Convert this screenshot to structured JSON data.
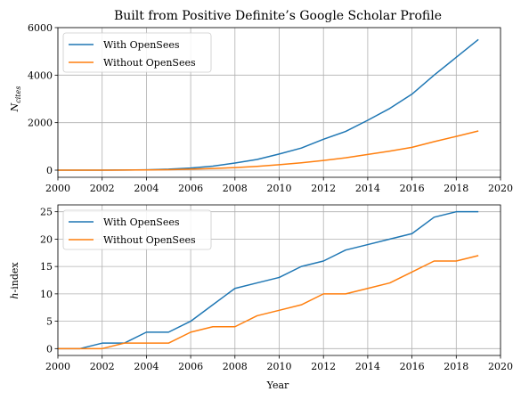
{
  "chart_data": [
    {
      "type": "line",
      "title": "Built from Positive Definite’s Google Scholar Profile",
      "xlabel": "",
      "ylabel": "N_cites",
      "ylabel_main": "N",
      "ylabel_sub": "cites",
      "xlim": [
        2000,
        2020
      ],
      "ylim": [
        -300,
        6000
      ],
      "xticks": [
        2000,
        2002,
        2004,
        2006,
        2008,
        2010,
        2012,
        2014,
        2016,
        2018,
        2020
      ],
      "yticks": [
        0,
        2000,
        4000,
        6000
      ],
      "grid": true,
      "legend": "top-left",
      "x": [
        2000,
        2001,
        2002,
        2003,
        2004,
        2005,
        2006,
        2007,
        2008,
        2009,
        2010,
        2011,
        2012,
        2013,
        2014,
        2015,
        2016,
        2017,
        2018,
        2019
      ],
      "series": [
        {
          "name": "With OpenSees",
          "color": "#1f77b4",
          "values": [
            0,
            0,
            2,
            5,
            15,
            40,
            90,
            170,
            300,
            450,
            680,
            930,
            1300,
            1630,
            2100,
            2600,
            3200,
            4000,
            4750,
            5500
          ]
        },
        {
          "name": "Without OpenSees",
          "color": "#ff7f0e",
          "values": [
            0,
            0,
            1,
            3,
            8,
            20,
            40,
            70,
            110,
            160,
            230,
            310,
            410,
            520,
            660,
            800,
            960,
            1200,
            1420,
            1650
          ]
        }
      ]
    },
    {
      "type": "line",
      "title": "",
      "xlabel": "Year",
      "ylabel": "h-index",
      "ylabel_main": "h",
      "ylabel_rest": "-index",
      "xlim": [
        2000,
        2020
      ],
      "ylim": [
        -1.25,
        26.25
      ],
      "xticks": [
        2000,
        2002,
        2004,
        2006,
        2008,
        2010,
        2012,
        2014,
        2016,
        2018,
        2020
      ],
      "yticks": [
        0,
        5,
        10,
        15,
        20,
        25
      ],
      "grid": true,
      "legend": "top-left",
      "x": [
        2000,
        2001,
        2002,
        2003,
        2004,
        2005,
        2006,
        2007,
        2008,
        2009,
        2010,
        2011,
        2012,
        2013,
        2014,
        2015,
        2016,
        2017,
        2018,
        2019
      ],
      "series": [
        {
          "name": "With OpenSees",
          "color": "#1f77b4",
          "values": [
            0,
            0,
            1,
            1,
            3,
            3,
            5,
            8,
            11,
            12,
            13,
            15,
            16,
            18,
            19,
            20,
            21,
            24,
            25,
            25
          ]
        },
        {
          "name": "Without OpenSees",
          "color": "#ff7f0e",
          "values": [
            0,
            0,
            0,
            1,
            1,
            1,
            3,
            4,
            4,
            6,
            7,
            8,
            10,
            10,
            11,
            12,
            14,
            16,
            16,
            17
          ]
        }
      ]
    }
  ]
}
